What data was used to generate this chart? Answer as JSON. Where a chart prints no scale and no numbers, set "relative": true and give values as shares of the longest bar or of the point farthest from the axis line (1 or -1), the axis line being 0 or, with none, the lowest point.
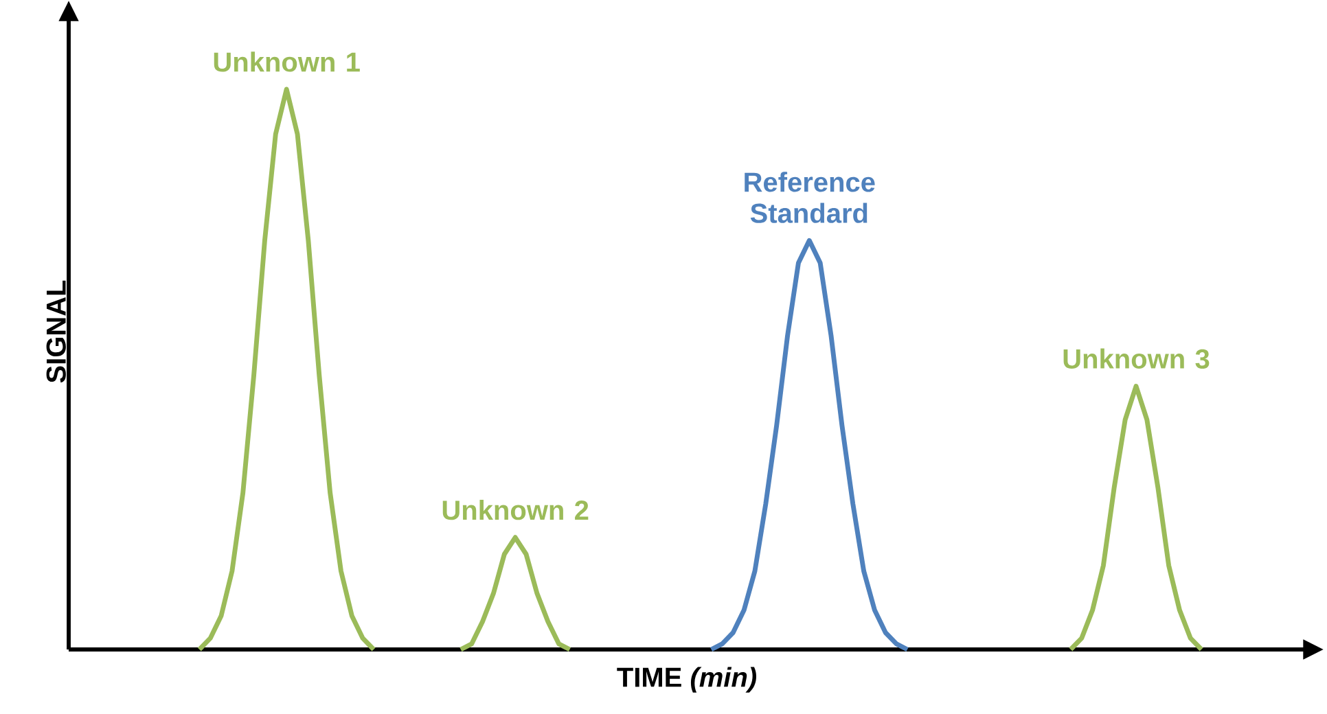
{
  "chart_data": {
    "type": "line",
    "relative": true,
    "xlabel": "TIME *(min)*",
    "ylabel": "SIGNAL",
    "categories": [
      null,
      null,
      null,
      null,
      null,
      null,
      null,
      null,
      null,
      null,
      null,
      null,
      null,
      null,
      null,
      null,
      null,
      null,
      null,
      null,
      null,
      null,
      null,
      null,
      null,
      null,
      null,
      null,
      null,
      null,
      null,
      null,
      null,
      null,
      null,
      null,
      null,
      null,
      null,
      null,
      null,
      null,
      null,
      null,
      null,
      null,
      null,
      null,
      null,
      null,
      null,
      null,
      null,
      null,
      null,
      null,
      null,
      null,
      null,
      null,
      null,
      null,
      null,
      null,
      null,
      null,
      null,
      null,
      null,
      null,
      null,
      null,
      null,
      null,
      null,
      null,
      null,
      null,
      null,
      null,
      null,
      null,
      null,
      null,
      null,
      null,
      null,
      null,
      null,
      null,
      null,
      null,
      null,
      null,
      null,
      null,
      null,
      null,
      null,
      null,
      null,
      null,
      null,
      null,
      null,
      null,
      null,
      null,
      null,
      null,
      null,
      null,
      null
    ],
    "series": [
      {
        "name": "Unknown 1",
        "color": "#9bbb59",
        "values": [
          null,
          null,
          null,
          null,
          null,
          null,
          null,
          null,
          null,
          null,
          null,
          null,
          0,
          0.02,
          0.06,
          0.14,
          0.28,
          0.49,
          0.73,
          0.92,
          1,
          0.92,
          0.73,
          0.49,
          0.28,
          0.14,
          0.06,
          0.02,
          0,
          null,
          null,
          null,
          null,
          null,
          null,
          null,
          null,
          null,
          null,
          null,
          null,
          null,
          null,
          null,
          null,
          null,
          null,
          null,
          null,
          null,
          null,
          null,
          null,
          null,
          null,
          null,
          null,
          null,
          null,
          null,
          null,
          null,
          null,
          null,
          null,
          null,
          null,
          null,
          null,
          null,
          null,
          null,
          null,
          null,
          null,
          null,
          null,
          null,
          null,
          null,
          null,
          null,
          null,
          null,
          null,
          null,
          null,
          null,
          null,
          null,
          null,
          null,
          null,
          null,
          null,
          null,
          null,
          null,
          null,
          null,
          null,
          null,
          null,
          null,
          null,
          null,
          null,
          null,
          null,
          null,
          null,
          null,
          null
        ]
      },
      {
        "name": "Unknown 2",
        "color": "#9bbb59",
        "values": [
          null,
          null,
          null,
          null,
          null,
          null,
          null,
          null,
          null,
          null,
          null,
          null,
          null,
          null,
          null,
          null,
          null,
          null,
          null,
          null,
          null,
          null,
          null,
          null,
          null,
          null,
          null,
          null,
          null,
          null,
          null,
          null,
          null,
          null,
          null,
          null,
          0,
          0.01,
          0.05,
          0.1,
          0.17,
          0.2,
          0.17,
          0.1,
          0.05,
          0.01,
          0,
          null,
          null,
          null,
          null,
          null,
          null,
          null,
          null,
          null,
          null,
          null,
          null,
          null,
          null,
          null,
          null,
          null,
          null,
          null,
          null,
          null,
          null,
          null,
          null,
          null,
          null,
          null,
          null,
          null,
          null,
          null,
          null,
          null,
          null,
          null,
          null,
          null,
          null,
          null,
          null,
          null,
          null,
          null,
          null,
          null,
          null,
          null,
          null,
          null,
          null,
          null,
          null,
          null,
          null,
          null,
          null,
          null,
          null,
          null,
          null,
          null,
          null,
          null,
          null,
          null,
          null
        ]
      },
      {
        "name": "Reference Standard",
        "color": "#4f81bd",
        "values": [
          null,
          null,
          null,
          null,
          null,
          null,
          null,
          null,
          null,
          null,
          null,
          null,
          null,
          null,
          null,
          null,
          null,
          null,
          null,
          null,
          null,
          null,
          null,
          null,
          null,
          null,
          null,
          null,
          null,
          null,
          null,
          null,
          null,
          null,
          null,
          null,
          null,
          null,
          null,
          null,
          null,
          null,
          null,
          null,
          null,
          null,
          null,
          null,
          null,
          null,
          null,
          null,
          null,
          null,
          null,
          null,
          null,
          null,
          null,
          0,
          0.01,
          0.03,
          0.07,
          0.14,
          0.26,
          0.4,
          0.56,
          0.69,
          0.73,
          0.69,
          0.56,
          0.4,
          0.26,
          0.14,
          0.07,
          0.03,
          0.01,
          0,
          null,
          null,
          null,
          null,
          null,
          null,
          null,
          null,
          null,
          null,
          null,
          null,
          null,
          null,
          null,
          null,
          null,
          null,
          null,
          null,
          null,
          null,
          null,
          null,
          null,
          null,
          null,
          null,
          null,
          null,
          null,
          null,
          null,
          null,
          null
        ]
      },
      {
        "name": "Unknown 3",
        "color": "#9bbb59",
        "values": [
          null,
          null,
          null,
          null,
          null,
          null,
          null,
          null,
          null,
          null,
          null,
          null,
          null,
          null,
          null,
          null,
          null,
          null,
          null,
          null,
          null,
          null,
          null,
          null,
          null,
          null,
          null,
          null,
          null,
          null,
          null,
          null,
          null,
          null,
          null,
          null,
          null,
          null,
          null,
          null,
          null,
          null,
          null,
          null,
          null,
          null,
          null,
          null,
          null,
          null,
          null,
          null,
          null,
          null,
          null,
          null,
          null,
          null,
          null,
          null,
          null,
          null,
          null,
          null,
          null,
          null,
          null,
          null,
          null,
          null,
          null,
          null,
          null,
          null,
          null,
          null,
          null,
          null,
          null,
          null,
          null,
          null,
          null,
          null,
          null,
          null,
          null,
          null,
          null,
          null,
          null,
          null,
          0,
          0.02,
          0.07,
          0.15,
          0.29,
          0.41,
          0.47,
          0.41,
          0.29,
          0.15,
          0.07,
          0.02,
          0,
          null,
          null,
          null,
          null,
          null,
          null,
          null,
          null
        ]
      }
    ]
  }
}
